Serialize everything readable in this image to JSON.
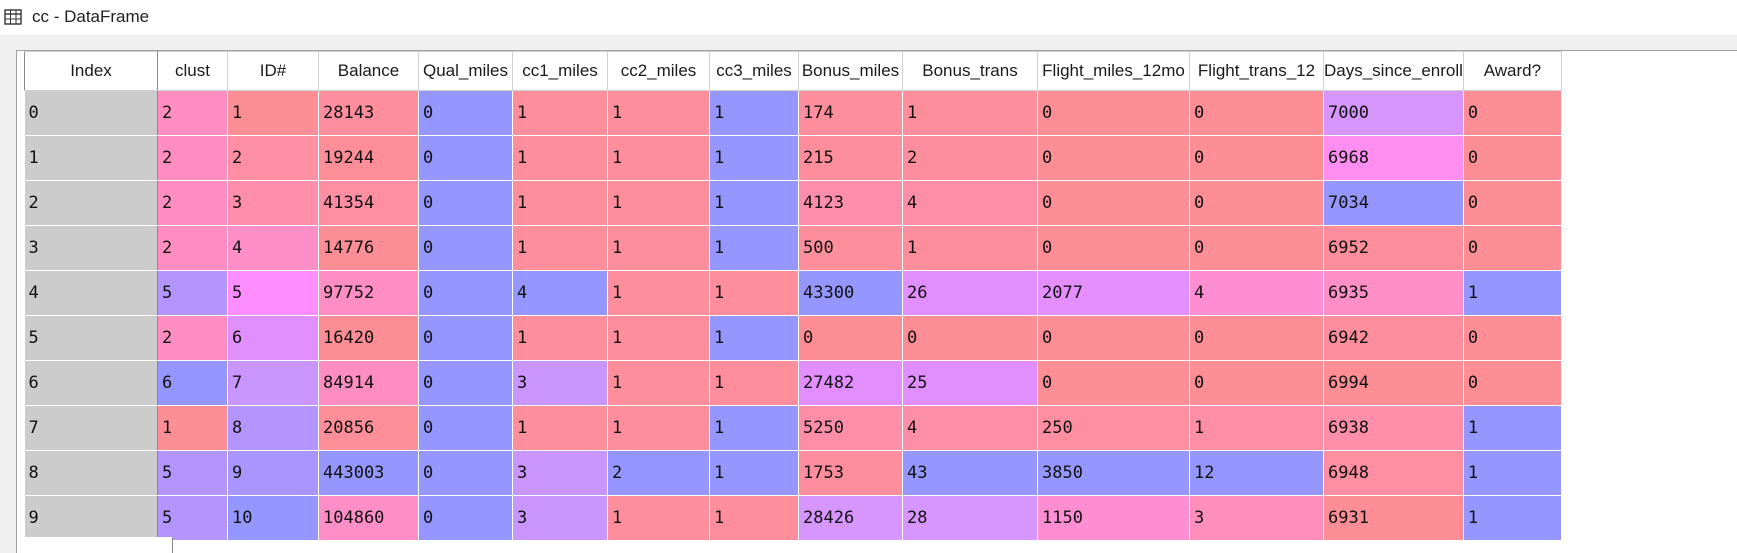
{
  "window": {
    "title": "cc - DataFrame"
  },
  "table": {
    "columns": [
      "Index",
      "clust",
      "ID#",
      "Balance",
      "Qual_miles",
      "cc1_miles",
      "cc2_miles",
      "cc3_miles",
      "Bonus_miles",
      "Bonus_trans",
      "Flight_miles_12mo",
      "Flight_trans_12",
      "Days_since_enroll",
      "Award?"
    ],
    "rows": [
      {
        "cells": [
          "0",
          "2",
          "1",
          "28143",
          "0",
          "1",
          "1",
          "1",
          "174",
          "1",
          "0",
          "0",
          "7000",
          "0"
        ],
        "colors": [
          "#cccccc",
          "#fe8ec2",
          "#fe8e96",
          "#fe8e9e",
          "#9597fe",
          "#fe8e9b",
          "#fe8e9b",
          "#9597fe",
          "#fe8e9b",
          "#fe8e9b",
          "#fe8e96",
          "#fe8e96",
          "#d795fe",
          "#fe8e96"
        ]
      },
      {
        "cells": [
          "1",
          "2",
          "2",
          "19244",
          "0",
          "1",
          "1",
          "1",
          "215",
          "2",
          "0",
          "0",
          "6968",
          "0"
        ],
        "colors": [
          "#cccccc",
          "#fe8ec2",
          "#fe8ea4",
          "#fe8e98",
          "#9597fe",
          "#fe8e9b",
          "#fe8e9b",
          "#9597fe",
          "#fe8e9b",
          "#fe8e9e",
          "#fe8e96",
          "#fe8e96",
          "#fe8ef0",
          "#fe8e96"
        ]
      },
      {
        "cells": [
          "2",
          "2",
          "3",
          "41354",
          "0",
          "1",
          "1",
          "1",
          "4123",
          "4",
          "0",
          "0",
          "7034",
          "0"
        ],
        "colors": [
          "#cccccc",
          "#fe8ec2",
          "#fe8eac",
          "#fe8ea2",
          "#9597fe",
          "#fe8e9b",
          "#fe8e9b",
          "#9597fe",
          "#fe8eac",
          "#fe8ea8",
          "#fe8e96",
          "#fe8e96",
          "#9597fe",
          "#fe8e96"
        ]
      },
      {
        "cells": [
          "3",
          "2",
          "4",
          "14776",
          "0",
          "1",
          "1",
          "1",
          "500",
          "1",
          "0",
          "0",
          "6952",
          "0"
        ],
        "colors": [
          "#cccccc",
          "#fe8ec2",
          "#fe8ec8",
          "#fe8e96",
          "#9597fe",
          "#fe8e9b",
          "#fe8e9b",
          "#9597fe",
          "#fe8e9b",
          "#fe8e9b",
          "#fe8e96",
          "#fe8e96",
          "#fe8e9b",
          "#fe8e96"
        ]
      },
      {
        "cells": [
          "4",
          "5",
          "5",
          "97752",
          "0",
          "4",
          "1",
          "1",
          "43300",
          "26",
          "2077",
          "4",
          "6935",
          "1"
        ],
        "colors": [
          "#cccccc",
          "#b495fe",
          "#fe8efe",
          "#fe8ec4",
          "#9597fe",
          "#9597fe",
          "#fe8e9b",
          "#fe8e9b",
          "#9597fe",
          "#e18efe",
          "#e58efe",
          "#fe8ed2",
          "#fe8ec6",
          "#9597fe"
        ]
      },
      {
        "cells": [
          "5",
          "2",
          "6",
          "16420",
          "0",
          "1",
          "1",
          "1",
          "0",
          "0",
          "0",
          "0",
          "6942",
          "0"
        ],
        "colors": [
          "#cccccc",
          "#fe8ec2",
          "#e18efe",
          "#fe8e96",
          "#9597fe",
          "#fe8e9b",
          "#fe8e9b",
          "#9597fe",
          "#fe8e96",
          "#fe8e96",
          "#fe8e96",
          "#fe8e96",
          "#fe8e9e",
          "#fe8e96"
        ]
      },
      {
        "cells": [
          "6",
          "6",
          "7",
          "84914",
          "0",
          "3",
          "1",
          "1",
          "27482",
          "25",
          "0",
          "0",
          "6994",
          "0"
        ],
        "colors": [
          "#cccccc",
          "#9597fe",
          "#c995fe",
          "#fe8ec2",
          "#9597fe",
          "#c995fe",
          "#fe8e9b",
          "#fe8e9b",
          "#e38efe",
          "#e18efe",
          "#fe8e96",
          "#fe8e96",
          "#fe8e96",
          "#fe8e96"
        ]
      },
      {
        "cells": [
          "7",
          "1",
          "8",
          "20856",
          "0",
          "1",
          "1",
          "1",
          "5250",
          "4",
          "250",
          "1",
          "6938",
          "1"
        ],
        "colors": [
          "#cccccc",
          "#fe8e96",
          "#b495fe",
          "#fe8e98",
          "#9597fe",
          "#fe8e9b",
          "#fe8e9b",
          "#9597fe",
          "#fe8ea8",
          "#fe8ea8",
          "#fe8ea0",
          "#fe8ea6",
          "#fe8eaa",
          "#9597fe"
        ]
      },
      {
        "cells": [
          "8",
          "5",
          "9",
          "443003",
          "0",
          "3",
          "2",
          "1",
          "1753",
          "43",
          "3850",
          "12",
          "6948",
          "1"
        ],
        "colors": [
          "#cccccc",
          "#b495fe",
          "#a895fe",
          "#9597fe",
          "#9597fe",
          "#c995fe",
          "#9597fe",
          "#9597fe",
          "#fe8e9e",
          "#9597fe",
          "#9597fe",
          "#9597fe",
          "#fe8ea2",
          "#9597fe"
        ]
      },
      {
        "cells": [
          "9",
          "5",
          "10",
          "104860",
          "0",
          "3",
          "1",
          "1",
          "28426",
          "28",
          "1150",
          "3",
          "6931",
          "1"
        ],
        "colors": [
          "#cccccc",
          "#b495fe",
          "#9597fe",
          "#fe8ec8",
          "#9597fe",
          "#c995fe",
          "#fe8e9b",
          "#fe8e9b",
          "#d795fe",
          "#d795fe",
          "#fe8ed2",
          "#fe8ebc",
          "#fe8e96",
          "#9597fe"
        ]
      }
    ]
  }
}
